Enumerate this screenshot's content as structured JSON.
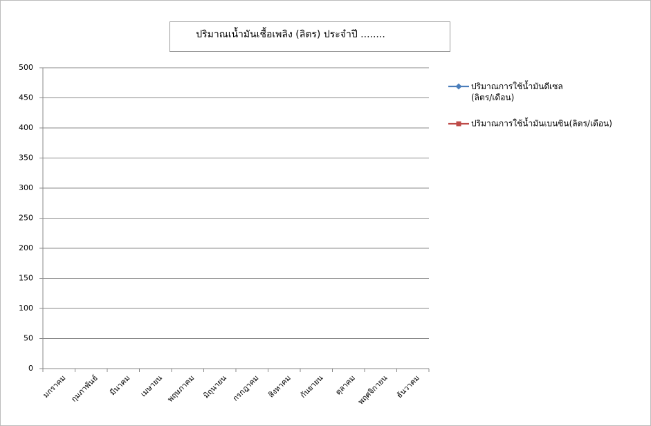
{
  "chart_data": {
    "type": "line",
    "title": "ปริมาณเน้ำมันเชื้อเพลิง  (ลิตร) ประจำปี ........",
    "categories": [
      "มกราคม",
      "กุมภาพันธ์",
      "มีนาคม",
      "เมษายน",
      "พฤษภาคม",
      "มิถุนายน",
      "กรกฎาคม",
      "สิงหาคม",
      "กันยายน",
      "ตุลาคม",
      "พฤศจิกายน",
      "ธันวาคม"
    ],
    "series": [
      {
        "name": "ปริมาณการใช้น้ำมันดีเซล (ลิตร/เดือน)",
        "color": "#4a7ebb",
        "marker": "diamond",
        "values": [
          null,
          null,
          null,
          null,
          null,
          null,
          null,
          null,
          null,
          null,
          null,
          null
        ]
      },
      {
        "name": "ปริมาณการใช้น้ำมันเบนซิน(ลิตร/เดือน)",
        "color": "#be4b48",
        "marker": "square",
        "values": [
          null,
          null,
          null,
          null,
          null,
          null,
          null,
          null,
          null,
          null,
          null,
          null
        ]
      }
    ],
    "ylim": [
      0,
      500
    ],
    "yticks": [
      0,
      50,
      100,
      150,
      200,
      250,
      300,
      350,
      400,
      450,
      500
    ],
    "grid": true,
    "legend": "right"
  }
}
